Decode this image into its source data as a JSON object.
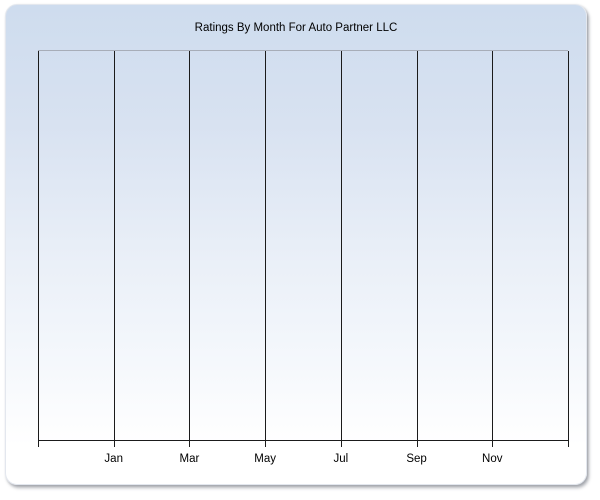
{
  "chart_data": {
    "type": "line",
    "title": "Ratings By Month For Auto Partner LLC",
    "x_tick_labels": [
      "Jan",
      "Mar",
      "May",
      "Jul",
      "Sep",
      "Nov"
    ],
    "vertical_gridline_count": 8,
    "series": [],
    "grid": {
      "vertical": true,
      "horizontal": false
    },
    "y_axis_labels_visible": false,
    "legend_visible": false
  },
  "colors": {
    "panel_gradient_top": "#cedcee",
    "panel_gradient_bottom": "#ffffff",
    "gridline": "#1b1b1b",
    "plot_top_border": "#a7adb8",
    "title_text": "#000000",
    "tick_label_text": "#000000"
  }
}
